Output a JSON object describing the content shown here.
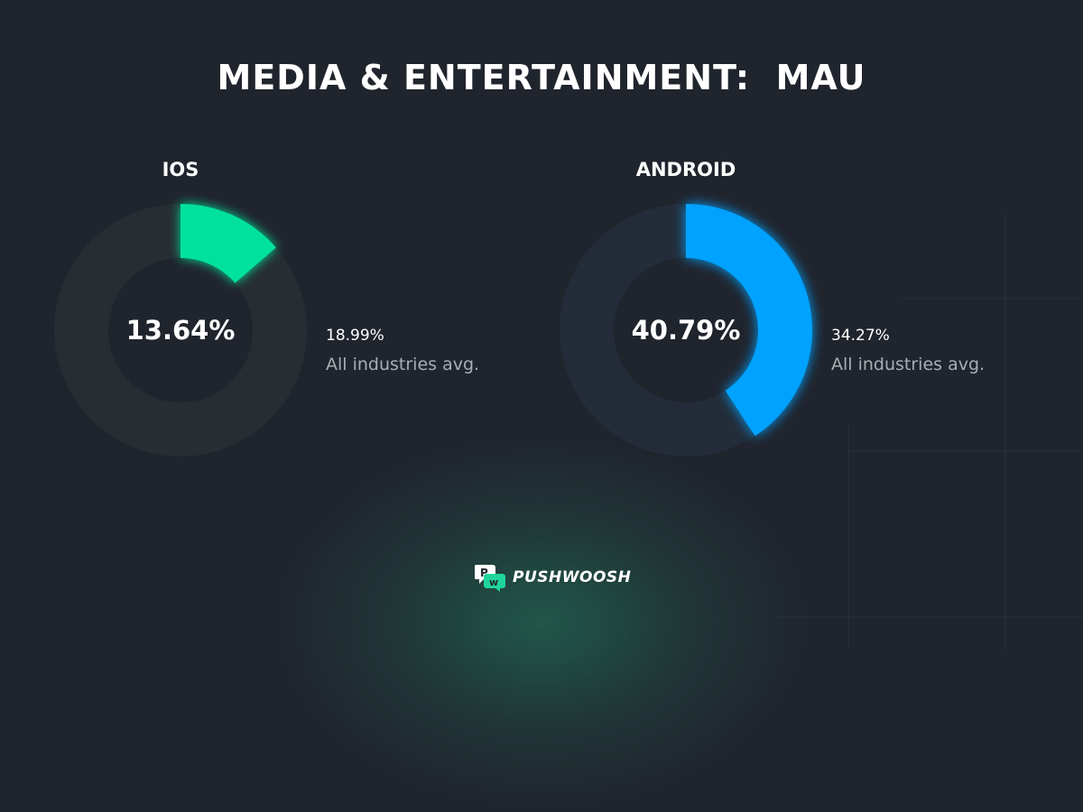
{
  "title": "MEDIA & ENTERTAINMENT:  MAU",
  "chart_data": [
    {
      "type": "pie",
      "platform": "IOS",
      "value": 13.64,
      "value_label": "13.64%",
      "industry_avg": 18.99,
      "industry_avg_label": "18.99%",
      "avg_caption": "All industries avg.",
      "color": "#00e29c",
      "track_color": "#262d33"
    },
    {
      "type": "pie",
      "platform": "ANDROID",
      "value": 40.79,
      "value_label": "40.79%",
      "industry_avg": 34.27,
      "industry_avg_label": "34.27%",
      "avg_caption": "All industries avg.",
      "color": "#00a2ff",
      "track_color": "#232c38"
    }
  ],
  "brand": {
    "name": "PUSHWOOSH",
    "logo_icon": "pushwoosh-logo-icon",
    "accent": "#1fd69a"
  },
  "colors": {
    "background": "#20242d"
  }
}
